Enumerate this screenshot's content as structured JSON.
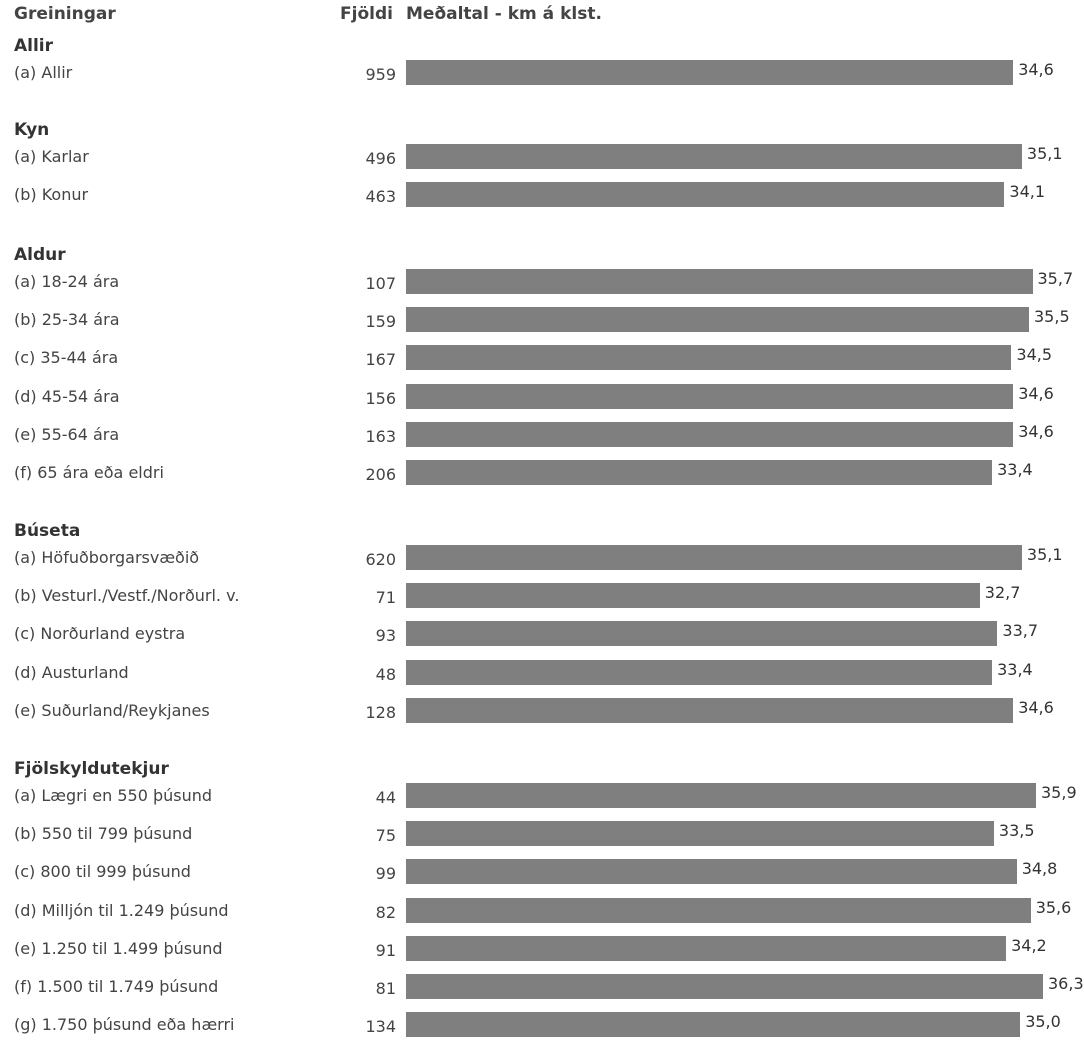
{
  "chart_data": {
    "type": "bar",
    "orientation": "horizontal",
    "headers": {
      "group": "Greiningar",
      "count": "Fjöldi",
      "value": "Meðaltal - km á klst."
    },
    "xlim": [
      0,
      36.3
    ],
    "groups": [
      {
        "title": "Allir",
        "items": [
          {
            "label": "(a) Allir",
            "count": "959",
            "value": 34.6,
            "value_label": "34,6"
          }
        ]
      },
      {
        "title": "Kyn",
        "items": [
          {
            "label": "(a) Karlar",
            "count": "496",
            "value": 35.1,
            "value_label": "35,1"
          },
          {
            "label": "(b) Konur",
            "count": "463",
            "value": 34.1,
            "value_label": "34,1"
          }
        ]
      },
      {
        "title": "Aldur",
        "items": [
          {
            "label": "(a) 18-24 ára",
            "count": "107",
            "value": 35.7,
            "value_label": "35,7"
          },
          {
            "label": "(b) 25-34 ára",
            "count": "159",
            "value": 35.5,
            "value_label": "35,5"
          },
          {
            "label": "(c) 35-44 ára",
            "count": "167",
            "value": 34.5,
            "value_label": "34,5"
          },
          {
            "label": "(d) 45-54 ára",
            "count": "156",
            "value": 34.6,
            "value_label": "34,6"
          },
          {
            "label": "(e) 55-64 ára",
            "count": "163",
            "value": 34.6,
            "value_label": "34,6"
          },
          {
            "label": "(f) 65 ára eða eldri",
            "count": "206",
            "value": 33.4,
            "value_label": "33,4"
          }
        ]
      },
      {
        "title": "Búseta",
        "items": [
          {
            "label": "(a) Höfuðborgarsvæðið",
            "count": "620",
            "value": 35.1,
            "value_label": "35,1"
          },
          {
            "label": "(b) Vesturl./Vestf./Norðurl. v.",
            "count": "71",
            "value": 32.7,
            "value_label": "32,7"
          },
          {
            "label": "(c) Norðurland eystra",
            "count": "93",
            "value": 33.7,
            "value_label": "33,7"
          },
          {
            "label": "(d) Austurland",
            "count": "48",
            "value": 33.4,
            "value_label": "33,4"
          },
          {
            "label": "(e) Suðurland/Reykjanes",
            "count": "128",
            "value": 34.6,
            "value_label": "34,6"
          }
        ]
      },
      {
        "title": "Fjölskyldutekjur",
        "items": [
          {
            "label": "(a) Lægri en 550 þúsund",
            "count": "44",
            "value": 35.9,
            "value_label": "35,9"
          },
          {
            "label": "(b) 550 til 799 þúsund",
            "count": "75",
            "value": 33.5,
            "value_label": "33,5"
          },
          {
            "label": "(c) 800 til 999 þúsund",
            "count": "99",
            "value": 34.8,
            "value_label": "34,8"
          },
          {
            "label": "(d) Milljón til 1.249 þúsund",
            "count": "82",
            "value": 35.6,
            "value_label": "35,6"
          },
          {
            "label": "(e) 1.250 til 1.499 þúsund",
            "count": "91",
            "value": 34.2,
            "value_label": "34,2"
          },
          {
            "label": "(f) 1.500 til 1.749 þúsund",
            "count": "81",
            "value": 36.3,
            "value_label": "36,3"
          },
          {
            "label": "(g) 1.750 þúsund eða hærri",
            "count": "134",
            "value": 35.0,
            "value_label": "35,0"
          }
        ]
      }
    ],
    "colors": {
      "bar": "#7f7f7f"
    },
    "grid": false,
    "legend": "none"
  }
}
